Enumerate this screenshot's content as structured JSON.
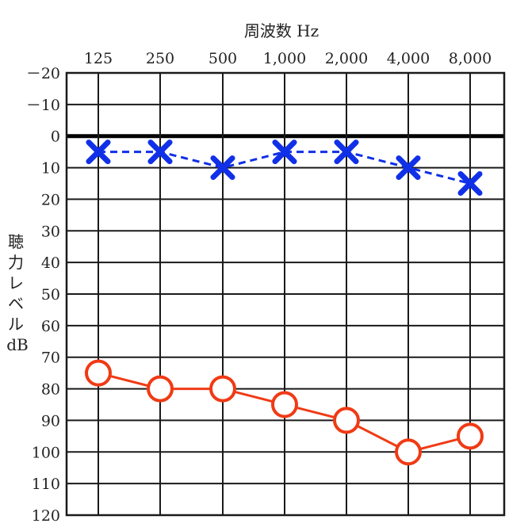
{
  "chart_data": {
    "type": "line",
    "title": "",
    "xlabel": "周波数 Hz",
    "ylabel": "聴力レベル dB",
    "x_categories": [
      "125",
      "250",
      "500",
      "1,000",
      "2,000",
      "4,000",
      "8,000"
    ],
    "y_ticks": [
      "－20",
      "－10",
      "0",
      "10",
      "20",
      "30",
      "40",
      "50",
      "60",
      "70",
      "80",
      "90",
      "100",
      "110",
      "120"
    ],
    "ylim": [
      -20,
      120
    ],
    "y_inverted": true,
    "grid": true,
    "series": [
      {
        "marker": "x",
        "line_style": "dashed",
        "color": "#1030e8",
        "values": [
          5,
          5,
          10,
          5,
          5,
          10,
          15
        ]
      },
      {
        "marker": "o",
        "line_style": "solid",
        "color": "#f03a14",
        "values": [
          75,
          80,
          80,
          85,
          90,
          100,
          95
        ]
      }
    ]
  }
}
